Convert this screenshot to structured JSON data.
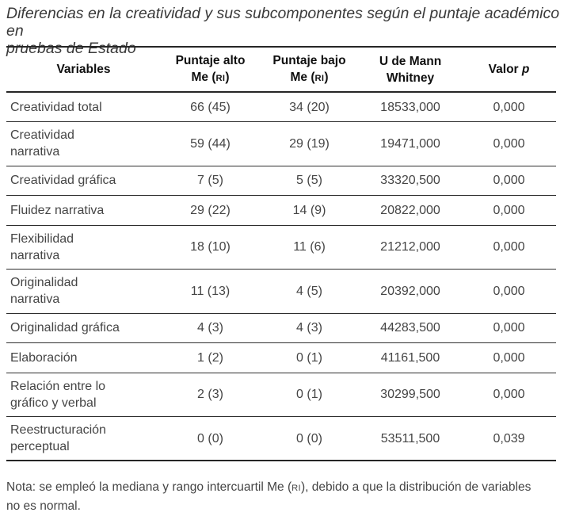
{
  "title": {
    "line1": "Diferencias en la creatividad y sus subcomponentes según el puntaje académico en",
    "line2": "pruebas de Estado"
  },
  "table": {
    "columns": [
      {
        "id": "variables",
        "lines": [
          [
            {
              "t": "Variables"
            }
          ]
        ]
      },
      {
        "id": "puntaje-alto",
        "lines": [
          [
            {
              "t": "Puntaje alto"
            }
          ],
          [
            {
              "t": "Me ("
            },
            {
              "t": "RI",
              "s": "sc"
            },
            {
              "t": ")"
            }
          ]
        ]
      },
      {
        "id": "puntaje-bajo",
        "lines": [
          [
            {
              "t": "Puntaje bajo"
            }
          ],
          [
            {
              "t": "Me ("
            },
            {
              "t": "RI",
              "s": "sc"
            },
            {
              "t": ")"
            }
          ]
        ]
      },
      {
        "id": "u-mann-whitney",
        "lines": [
          [
            {
              "t": "U de Mann"
            }
          ],
          [
            {
              "t": "Whitney"
            }
          ]
        ]
      },
      {
        "id": "valor-p",
        "lines": [
          [
            {
              "t": "Valor "
            },
            {
              "t": "p",
              "s": "it"
            }
          ]
        ]
      }
    ],
    "rows": [
      {
        "variable": [
          "Creatividad total"
        ],
        "alto": "66 (45)",
        "bajo": "34 (20)",
        "u": "18533,000",
        "p": "0,000"
      },
      {
        "variable": [
          "Creatividad",
          "narrativa"
        ],
        "alto": "59 (44)",
        "bajo": "29 (19)",
        "u": "19471,000",
        "p": "0,000"
      },
      {
        "variable": [
          "Creatividad gráfica"
        ],
        "alto": "7 (5)",
        "bajo": "5 (5)",
        "u": "33320,500",
        "p": "0,000"
      },
      {
        "variable": [
          "Fluidez narrativa"
        ],
        "alto": "29 (22)",
        "bajo": "14 (9)",
        "u": "20822,000",
        "p": "0,000"
      },
      {
        "variable": [
          "Flexibilidad",
          "narrativa"
        ],
        "alto": "18 (10)",
        "bajo": "11 (6)",
        "u": "21212,000",
        "p": "0,000"
      },
      {
        "variable": [
          "Originalidad",
          "narrativa"
        ],
        "alto": "11 (13)",
        "bajo": "4 (5)",
        "u": "20392,000",
        "p": "0,000"
      },
      {
        "variable": [
          "Originalidad gráfica"
        ],
        "alto": "4 (3)",
        "bajo": "4 (3)",
        "u": "44283,500",
        "p": "0,000"
      },
      {
        "variable": [
          "Elaboración"
        ],
        "alto": "1 (2)",
        "bajo": "0 (1)",
        "u": "41161,500",
        "p": "0,000"
      },
      {
        "variable": [
          "Relación entre lo",
          "gráfico y verbal"
        ],
        "alto": "2 (3)",
        "bajo": "0 (1)",
        "u": "30299,500",
        "p": "0,000"
      },
      {
        "variable": [
          "Reestructuración",
          "perceptual"
        ],
        "alto": "0 (0)",
        "bajo": "0 (0)",
        "u": "53511,500",
        "p": "0,039"
      }
    ]
  },
  "note": {
    "line1": [
      {
        "t": "Nota: se empleó la mediana y rango intercuartil Me ("
      },
      {
        "t": "RI",
        "s": "sc"
      },
      {
        "t": "), debido a que la distribución de variables"
      }
    ],
    "line2": [
      {
        "t": "no es normal."
      }
    ]
  },
  "colors": {
    "text": "#454545",
    "heading": "#0f0f0f",
    "rule": "#262626",
    "background": "#ffffff"
  }
}
